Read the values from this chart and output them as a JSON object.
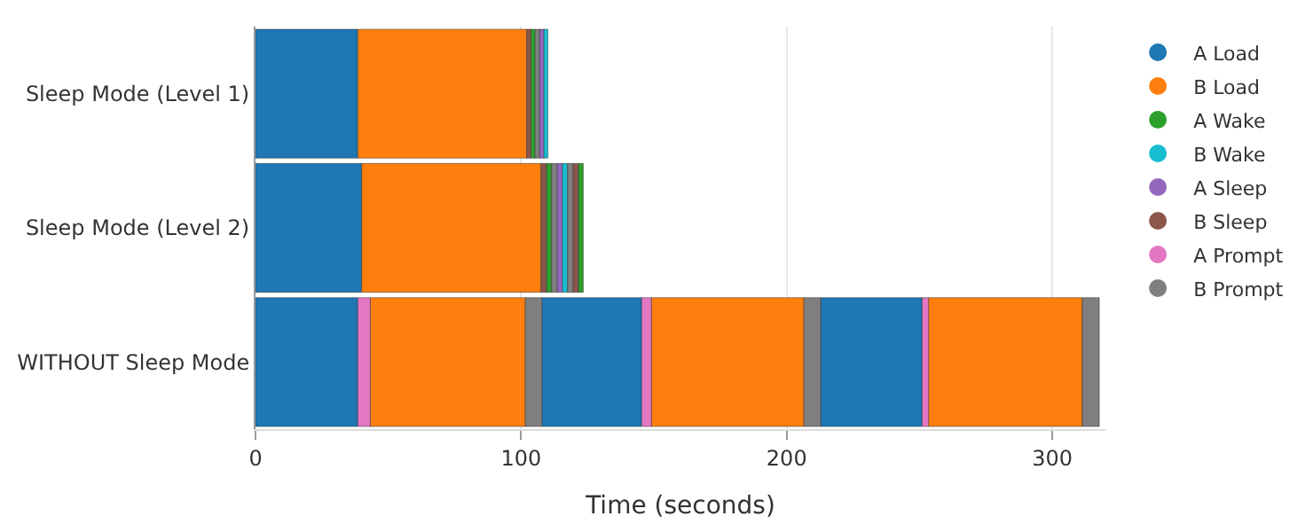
{
  "chart_data": {
    "type": "bar",
    "orientation": "horizontal",
    "xlabel": "Time (seconds)",
    "categories": [
      "Sleep Mode (Level 1)",
      "Sleep Mode (Level 2)",
      "WITHOUT Sleep Mode"
    ],
    "xlim": [
      0,
      320
    ],
    "xticks": [
      0,
      100,
      200,
      300
    ],
    "grid": "x",
    "legend": "right",
    "marker": "circle",
    "series": [
      {
        "name": "A Load",
        "color": "#1f77b4",
        "values": [
          38.5,
          40,
          38.5
        ],
        "base": [
          0,
          0,
          0
        ]
      },
      {
        "color": "#1f77b4",
        "values": [
          null,
          null,
          37.6
        ],
        "base": [
          null,
          null,
          107.8
        ]
      },
      {
        "color": "#1f77b4",
        "values": [
          null,
          null,
          38.2
        ],
        "base": [
          null,
          null,
          212.8
        ]
      },
      {
        "name": "B Load",
        "color": "#ff7f0e",
        "values": [
          63.6,
          67.5,
          58.4
        ],
        "base": [
          38.5,
          40,
          43.2
        ]
      },
      {
        "color": "#ff7f0e",
        "values": [
          null,
          null,
          57.4
        ],
        "base": [
          null,
          null,
          149.1
        ]
      },
      {
        "color": "#ff7f0e",
        "values": [
          null,
          null,
          57.9
        ],
        "base": [
          null,
          null,
          253.4
        ]
      },
      {
        "name": "A Wake",
        "color": "#2ca02c",
        "values": [
          1.6,
          2,
          null
        ],
        "base": [
          103.7,
          109.5,
          null
        ]
      },
      {
        "color": "#2ca02c",
        "values": [
          null,
          1.9,
          null
        ],
        "base": [
          null,
          121.5,
          null
        ]
      },
      {
        "name": "B Wake",
        "color": "#17becf",
        "values": [
          1.6,
          2,
          null
        ],
        "base": [
          108.5,
          115.5,
          null
        ]
      },
      {
        "name": "A Sleep",
        "color": "#9467bd",
        "values": [
          1.6,
          2,
          null
        ],
        "base": [
          106.9,
          113.5,
          null
        ]
      },
      {
        "name": "B Sleep",
        "color": "#8c564b",
        "values": [
          1.6,
          2,
          null
        ],
        "base": [
          102.1,
          107.5,
          null
        ]
      },
      {
        "color": "#8c564b",
        "values": [
          null,
          2,
          null
        ],
        "base": [
          null,
          119.5,
          null
        ]
      },
      {
        "name": "A Prompt",
        "color": "#e377c2",
        "values": [
          null,
          null,
          4.7
        ],
        "base": [
          null,
          null,
          38.5
        ]
      },
      {
        "color": "#e377c2",
        "values": [
          null,
          null,
          3.7
        ],
        "base": [
          null,
          null,
          145.4
        ]
      },
      {
        "color": "#e377c2",
        "values": [
          null,
          null,
          2.4
        ],
        "base": [
          null,
          null,
          251
        ]
      },
      {
        "name": "B Prompt",
        "color": "#7f7f7f",
        "values": [
          1.6,
          2,
          6.2
        ],
        "base": [
          105.3,
          111.5,
          101.6
        ]
      },
      {
        "color": "#7f7f7f",
        "values": [
          null,
          2,
          6.3
        ],
        "base": [
          null,
          117.5,
          206.5
        ]
      },
      {
        "color": "#7f7f7f",
        "values": [
          null,
          null,
          6.4
        ],
        "base": [
          null,
          null,
          311.3
        ]
      }
    ]
  }
}
